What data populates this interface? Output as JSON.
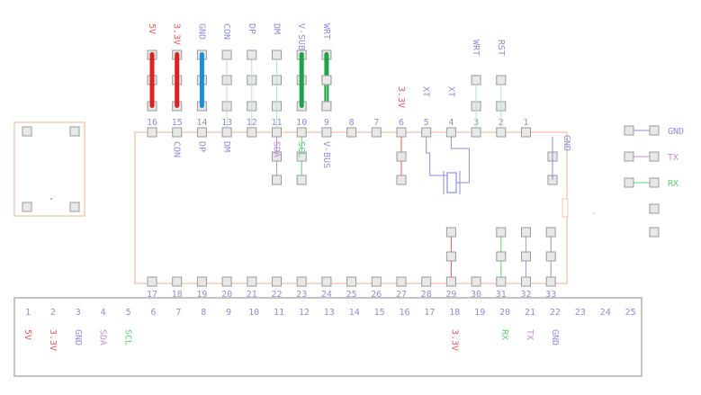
{
  "colors": {
    "chip_outline": "#f2c9b0",
    "pad_fill": "#e8e8e8",
    "pad_stroke": "#9a9a9a",
    "label_default": "#8f8fd8",
    "pink": "#e88",
    "red_jumper": "#dd2222",
    "blue_jumper": "#1a8fd6",
    "green_jumper": "#1ea34a",
    "violet": "#c48fe0",
    "mint": "#5fd07a",
    "salmon": "#e65a5a",
    "gray_box": "#b5b5b5"
  },
  "header": {
    "pins": [
      {
        "label": "5V",
        "color": "#e65a5a"
      },
      {
        "label": "3.3V",
        "color": "#e65a5a"
      },
      {
        "label": "GND",
        "color": "#8f8fd8"
      },
      {
        "label": "CON",
        "color": "#8f8fd8"
      },
      {
        "label": "DP",
        "color": "#8f8fd8"
      },
      {
        "label": "DM",
        "color": "#8f8fd8"
      },
      {
        "label": "V-SUB",
        "color": "#8f8fd8"
      },
      {
        "label": "WRT",
        "color": "#8f8fd8"
      }
    ],
    "jumpers": [
      {
        "pin": 0,
        "color": "#dd2222"
      },
      {
        "pin": 1,
        "color": "#dd2222"
      },
      {
        "pin": 2,
        "color": "#1a8fd6"
      },
      {
        "pin": 6,
        "color": "#1ea34a"
      },
      {
        "pin": 7,
        "color": "#1ea34a"
      }
    ]
  },
  "chip": {
    "top_pins": [
      "16",
      "15",
      "14",
      "13",
      "12",
      "11",
      "10",
      "9",
      "8",
      "7",
      "6",
      "5",
      "4",
      "3",
      "2",
      "1"
    ],
    "bottom_pins": [
      "17",
      "18",
      "19",
      "20",
      "21",
      "22",
      "23",
      "24",
      "25",
      "26",
      "27",
      "28",
      "29",
      "30",
      "31",
      "32",
      "33"
    ],
    "top_under_labels": [
      {
        "text": "CON",
        "pin": 1,
        "color": "#8f8fd8"
      },
      {
        "text": "DP",
        "pin": 2,
        "color": "#8f8fd8"
      },
      {
        "text": "DM",
        "pin": 3,
        "color": "#8f8fd8"
      },
      {
        "text": "SDA",
        "pin": 5,
        "color": "#c48fe0"
      },
      {
        "text": "SCL",
        "pin": 6,
        "color": "#5fd07a"
      },
      {
        "text": "V-BUS",
        "pin": 7,
        "color": "#8f8fd8"
      }
    ],
    "top_above_labels": [
      {
        "text": "3.3V",
        "pin": 10,
        "color": "#e65a5a"
      },
      {
        "text": "XT",
        "pin": 11,
        "color": "#8f8fd8"
      },
      {
        "text": "XT",
        "pin": 12,
        "color": "#8f8fd8"
      },
      {
        "text": "WRT",
        "pin": 13,
        "color": "#8f8fd8"
      },
      {
        "text": "RST",
        "pin": 14,
        "color": "#8f8fd8"
      }
    ],
    "side_label": "GND"
  },
  "connector": {
    "labels": [
      "GND",
      "TX",
      "RX"
    ],
    "colors": [
      "#8f8fd8",
      "#c48fe0",
      "#5fd07a"
    ]
  },
  "bottom_strip": {
    "numbers": [
      "1",
      "2",
      "3",
      "4",
      "5",
      "6",
      "7",
      "8",
      "9",
      "10",
      "11",
      "12",
      "13",
      "14",
      "15",
      "16",
      "17",
      "18",
      "19",
      "20",
      "21",
      "22",
      "23",
      "24",
      "25"
    ],
    "labels": [
      {
        "text": "5V",
        "index": 0,
        "color": "#e65a5a"
      },
      {
        "text": "3.3V",
        "index": 1,
        "color": "#e65a5a"
      },
      {
        "text": "GND",
        "index": 2,
        "color": "#8f8fd8"
      },
      {
        "text": "SDA",
        "index": 3,
        "color": "#c48fe0"
      },
      {
        "text": "SCL",
        "index": 4,
        "color": "#5fd07a"
      },
      {
        "text": "3.3V",
        "index": 17,
        "color": "#e65a5a"
      },
      {
        "text": "RX",
        "index": 19,
        "color": "#5fd07a"
      },
      {
        "text": "TX",
        "index": 20,
        "color": "#c48fe0"
      },
      {
        "text": "GND",
        "index": 21,
        "color": "#8f8fd8"
      }
    ]
  }
}
